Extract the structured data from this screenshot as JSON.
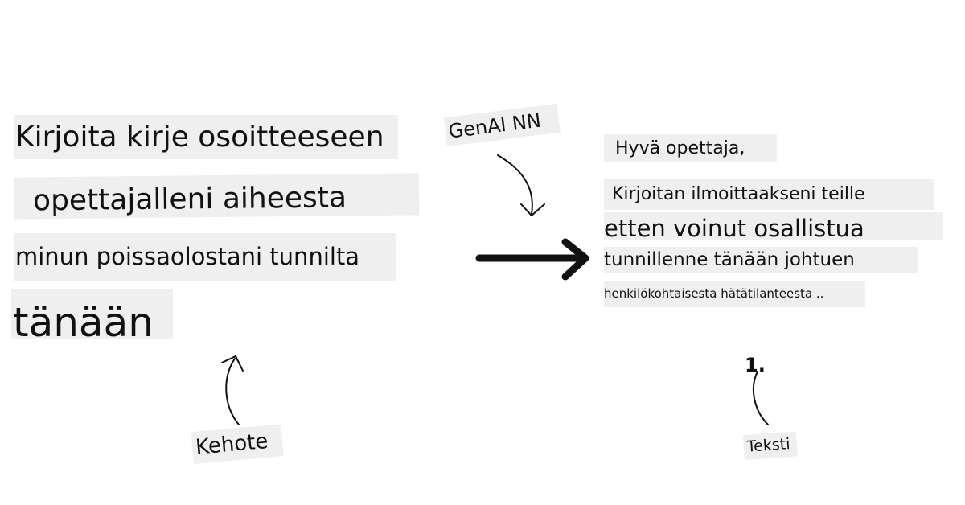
{
  "prompt_lines": [
    "Kirjoita kirje osoitteeseen",
    "opettajalleni aiheesta",
    "minun poissaolostani tunnilta",
    "tänään"
  ],
  "prompt_label": "Kehote",
  "model_label": "GenAI NN",
  "output_lines": [
    "Hyvä opettaja,",
    "Kirjoitan ilmoittaakseni teille",
    "etten voinut osallistua",
    "tunnillenne tänään johtuen",
    "henkilökohtaisesta hätätilanteesta .."
  ],
  "output_label": "Teksti",
  "token_marker": "1."
}
